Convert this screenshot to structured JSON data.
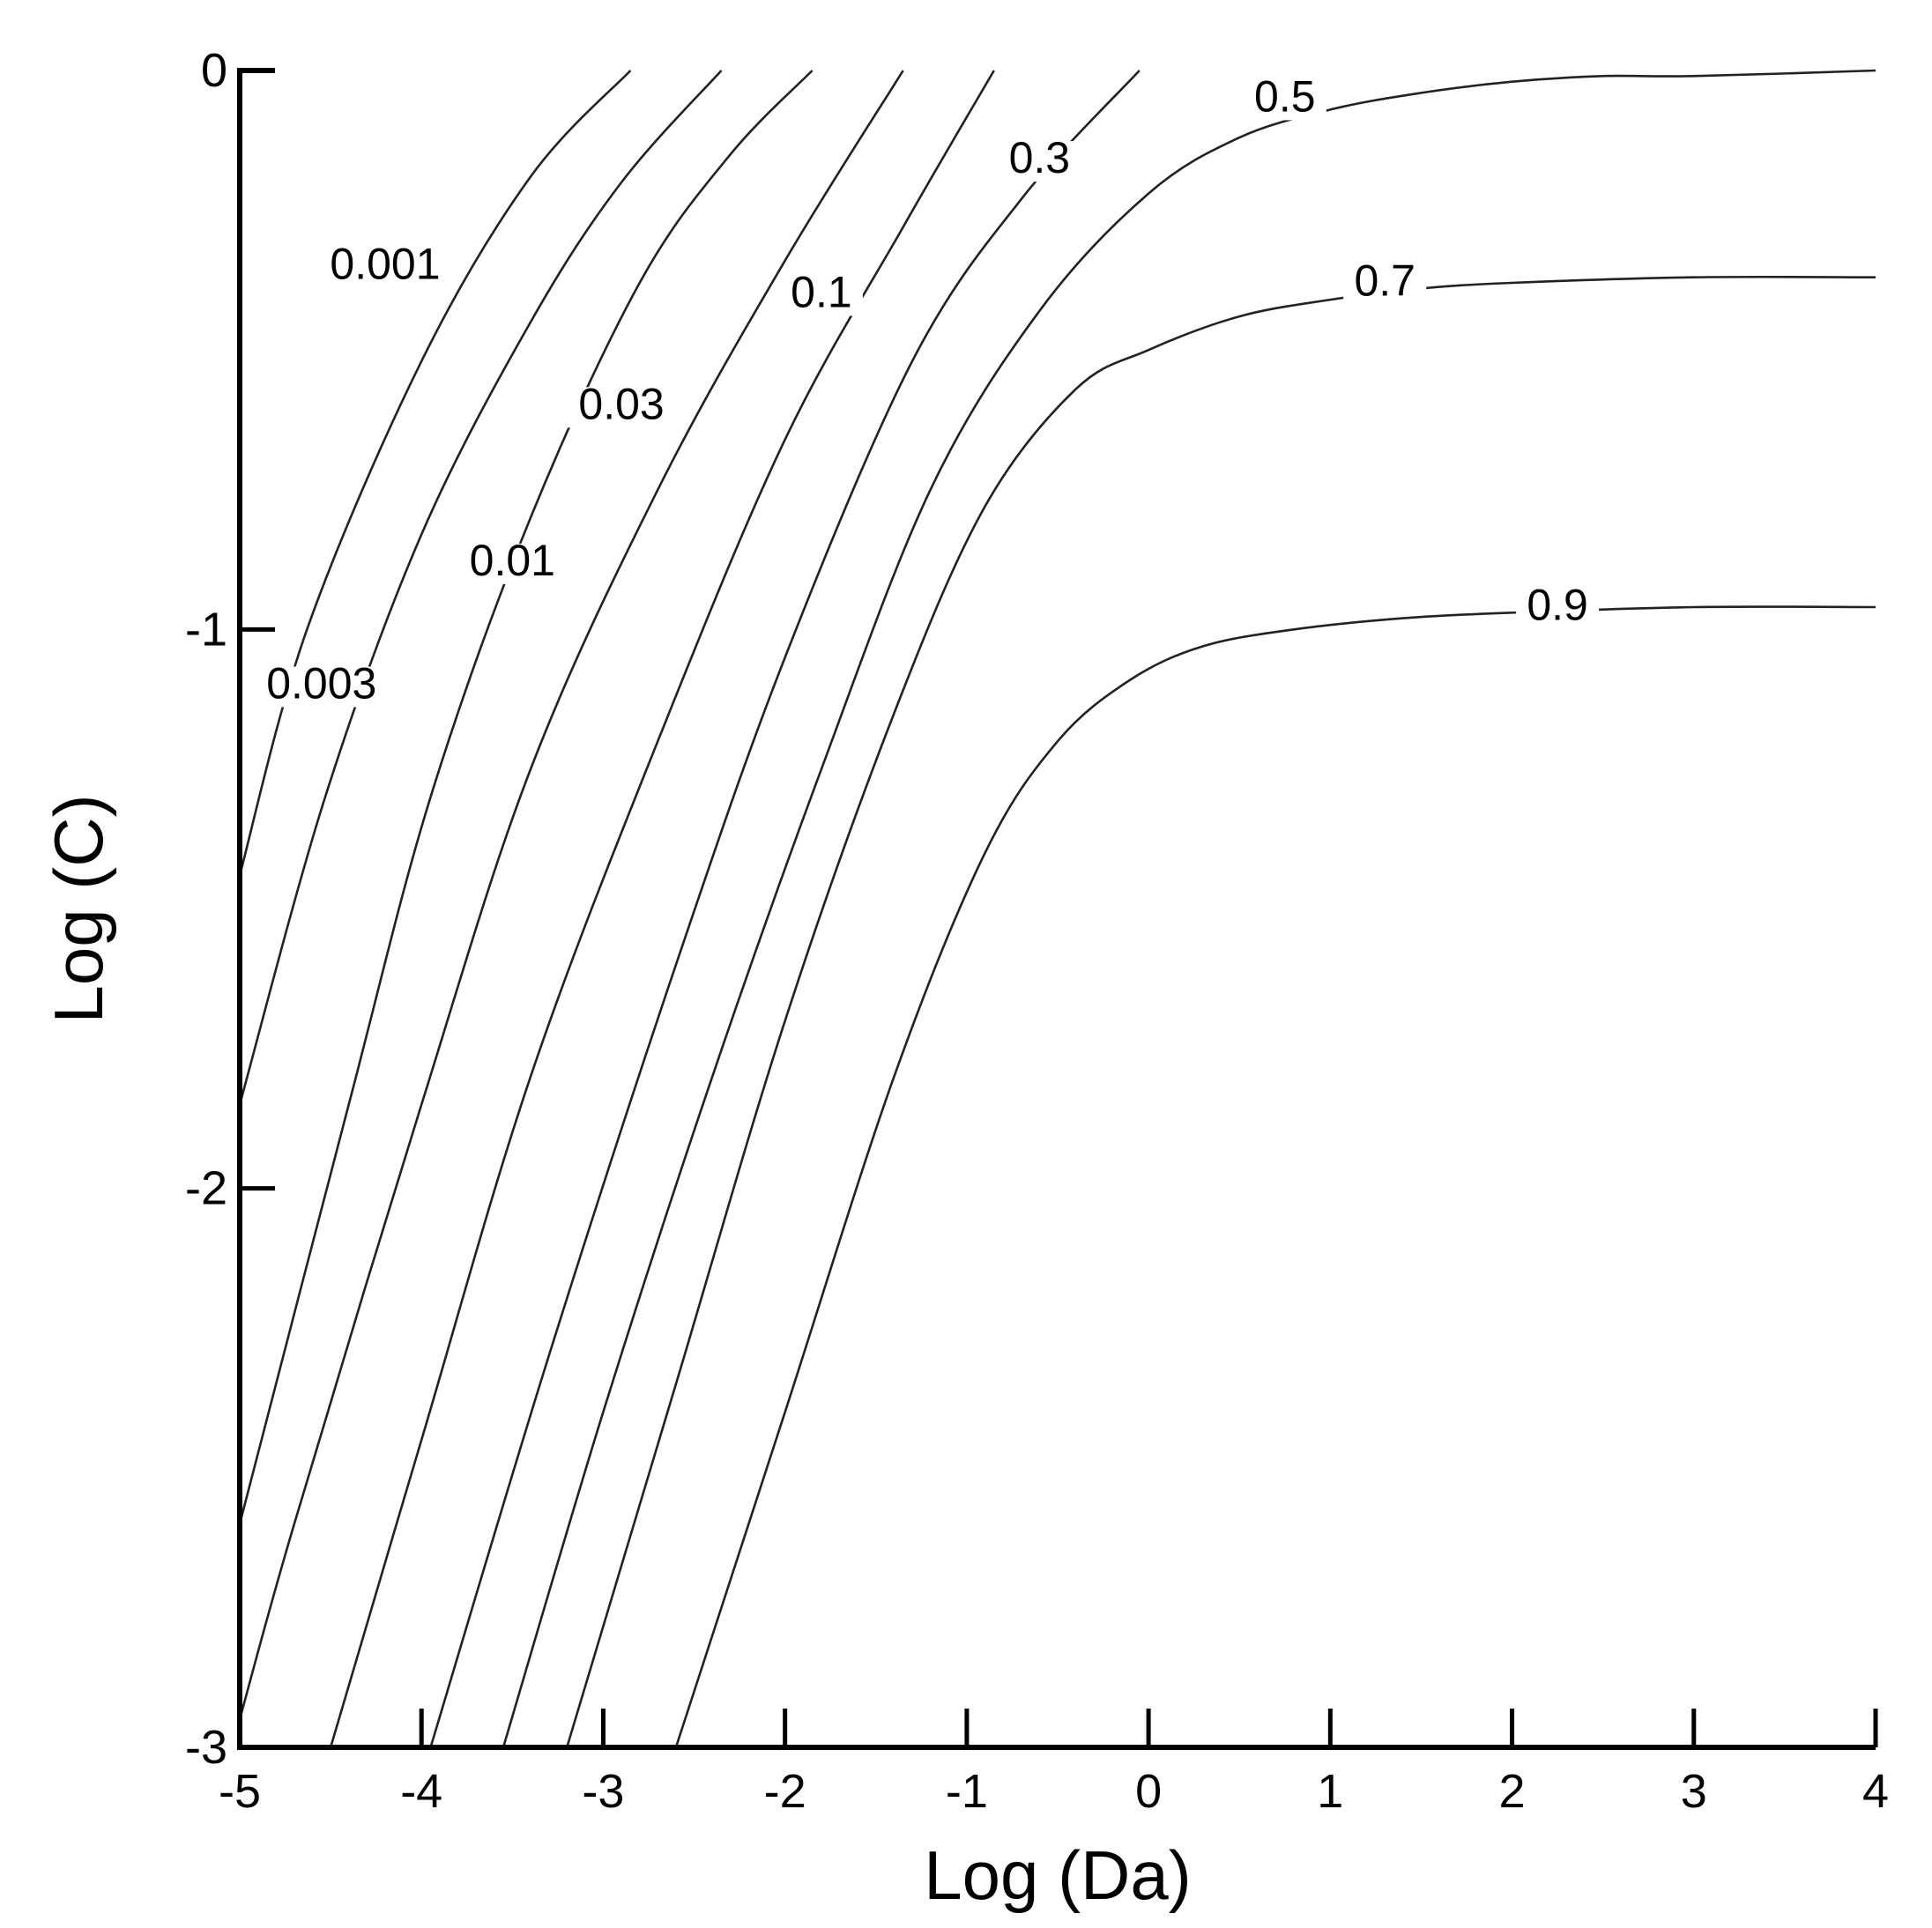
{
  "chart_data": {
    "type": "line",
    "title": "",
    "xlabel": "Log (Da)",
    "ylabel": "Log (C)",
    "xlim": [
      -5,
      4
    ],
    "ylim": [
      -3,
      0
    ],
    "x_ticks": [
      "-5",
      "-4",
      "-3",
      "-2",
      "-1",
      "0",
      "1",
      "2",
      "3",
      "4"
    ],
    "y_ticks": [
      "0",
      "-1",
      "-2",
      "-3"
    ],
    "grid": false,
    "legend": "none",
    "series": [
      {
        "name": "0.001",
        "x": [
          -5.0,
          -4.63,
          -4.0,
          -3.4,
          -2.85
        ],
        "y": [
          -1.44,
          -1.0,
          -0.52,
          -0.19,
          0.0
        ],
        "label_at": [
          -4.2,
          -0.37
        ]
      },
      {
        "name": "0.003",
        "x": [
          -5.0,
          -4.53,
          -4.0,
          -3.4,
          -2.9,
          -2.35
        ],
        "y": [
          -1.85,
          -1.3,
          -0.83,
          -0.45,
          -0.2,
          0.0
        ],
        "label_at": [
          -4.55,
          -1.12
        ]
      },
      {
        "name": "0.01",
        "x": [
          -5.0,
          -4.4,
          -3.95,
          -3.4,
          -2.8,
          -2.3,
          -1.85
        ],
        "y": [
          -2.6,
          -1.85,
          -1.3,
          -0.8,
          -0.38,
          -0.15,
          0.0
        ],
        "label_at": [
          -3.5,
          -0.9
        ]
      },
      {
        "name": "0.03",
        "x": [
          -5.0,
          -4.7,
          -4.0,
          -3.4,
          -2.7,
          -2.0,
          -1.35
        ],
        "y": [
          -2.95,
          -2.6,
          -1.85,
          -1.25,
          -0.75,
          -0.34,
          0.0
        ],
        "label_at": [
          -2.9,
          -0.62
        ]
      },
      {
        "name": "0.1",
        "x": [
          -4.5,
          -4.0,
          -3.4,
          -2.7,
          -2.0,
          -1.35,
          -0.85
        ],
        "y": [
          -3.0,
          -2.45,
          -1.8,
          -1.2,
          -0.66,
          -0.28,
          0.0
        ],
        "label_at": [
          -1.8,
          -0.42
        ]
      },
      {
        "name": "0.3",
        "x": [
          -3.95,
          -3.3,
          -2.6,
          -2.0,
          -1.3,
          -0.7,
          -0.05
        ],
        "y": [
          -3.0,
          -2.3,
          -1.6,
          -1.05,
          -0.52,
          -0.23,
          0.0
        ],
        "label_at": [
          -0.6,
          -0.18
        ]
      },
      {
        "name": "0.5",
        "x": [
          -3.55,
          -3.0,
          -2.4,
          -1.8,
          -1.2,
          -0.6,
          0.0,
          0.5,
          1.0,
          1.5,
          2.0,
          2.5,
          3.0,
          4.0
        ],
        "y": [
          -3.0,
          -2.4,
          -1.8,
          -1.25,
          -0.75,
          -0.43,
          -0.22,
          -0.12,
          -0.07,
          -0.04,
          -0.02,
          -0.01,
          -0.01,
          0.0
        ],
        "label_at": [
          0.75,
          -0.07
        ]
      },
      {
        "name": "0.7",
        "x": [
          -3.2,
          -2.6,
          -2.0,
          -1.4,
          -0.9,
          -0.4,
          0.0,
          0.5,
          1.0,
          1.5,
          2.0,
          3.0,
          4.0
        ],
        "y": [
          -3.0,
          -2.35,
          -1.7,
          -1.15,
          -0.78,
          -0.57,
          -0.5,
          -0.44,
          -0.41,
          -0.39,
          -0.38,
          -0.37,
          -0.37
        ],
        "label_at": [
          1.3,
          -0.4
        ]
      },
      {
        "name": "0.9",
        "x": [
          -2.6,
          -2.0,
          -1.4,
          -0.9,
          -0.5,
          -0.1,
          0.3,
          0.8,
          1.4,
          2.0,
          3.0,
          4.0
        ],
        "y": [
          -3.0,
          -2.4,
          -1.8,
          -1.4,
          -1.2,
          -1.09,
          -1.03,
          -1.0,
          -0.98,
          -0.97,
          -0.96,
          -0.96
        ],
        "label_at": [
          2.25,
          -0.98
        ]
      }
    ]
  }
}
